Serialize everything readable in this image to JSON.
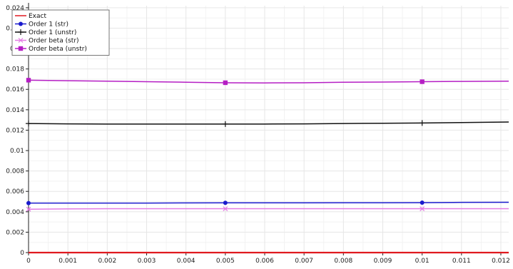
{
  "chart_data": {
    "type": "line",
    "title": "",
    "xlabel": "",
    "ylabel": "",
    "xlim": [
      0,
      0.0122
    ],
    "ylim": [
      0,
      0.0242
    ],
    "grid": true,
    "legend_position": "top-left",
    "x_ticks": [
      0,
      0.001,
      0.002,
      0.003,
      0.004,
      0.005,
      0.006,
      0.007,
      0.008,
      0.009,
      0.01,
      0.011,
      0.012
    ],
    "x_tick_labels": [
      "0",
      "0.001",
      "0.002",
      "0.003",
      "0.004",
      "0.005",
      "0.006",
      "0.007",
      "0.008",
      "0.009",
      "0.01",
      "0.011",
      "0.012"
    ],
    "y_ticks": [
      0,
      0.002,
      0.004,
      0.006,
      0.008,
      0.01,
      0.012,
      0.014,
      0.016,
      0.018,
      0.02,
      0.022,
      0.024
    ],
    "y_tick_labels": [
      "0",
      "0.002",
      "0.004",
      "0.006",
      "0.008",
      "0.01",
      "0.012",
      "0.014",
      "0.016",
      "0.018",
      "0.02",
      "0.022",
      "0.024"
    ],
    "x": [
      0,
      0.001,
      0.002,
      0.003,
      0.004,
      0.005,
      0.006,
      0.007,
      0.008,
      0.009,
      0.01,
      0.011,
      0.0122
    ],
    "series": [
      {
        "name": "Exact",
        "color": "#e0191f",
        "marker": "none",
        "values": [
          0,
          0,
          0,
          0,
          0,
          0,
          0,
          0,
          0,
          0,
          0,
          0,
          0
        ]
      },
      {
        "name": "Order 1 (str)",
        "color": "#1a1acd",
        "marker": "circle",
        "marker_x": [
          0,
          0.005,
          0.01
        ],
        "values": [
          0.00485,
          0.00485,
          0.00485,
          0.00485,
          0.00487,
          0.00488,
          0.00488,
          0.00488,
          0.00489,
          0.00489,
          0.0049,
          0.00492,
          0.00493
        ]
      },
      {
        "name": "Order 1 (unstr)",
        "color": "#111111",
        "marker": "plus",
        "marker_x": [
          0,
          0.005,
          0.01
        ],
        "values": [
          0.01265,
          0.01262,
          0.0126,
          0.0126,
          0.0126,
          0.0126,
          0.0126,
          0.01262,
          0.01265,
          0.01268,
          0.0127,
          0.01275,
          0.0128
        ]
      },
      {
        "name": "Order beta (str)",
        "color": "#e37ae3",
        "marker": "cross",
        "marker_x": [
          0,
          0.005,
          0.01
        ],
        "values": [
          0.00425,
          0.00428,
          0.0043,
          0.0043,
          0.0043,
          0.0043,
          0.0043,
          0.0043,
          0.0043,
          0.0043,
          0.0043,
          0.0043,
          0.0043
        ]
      },
      {
        "name": "Order beta (unstr)",
        "color": "#b51ec4",
        "marker": "square",
        "marker_x": [
          0,
          0.005,
          0.01
        ],
        "values": [
          0.0169,
          0.01685,
          0.0168,
          0.01675,
          0.0167,
          0.01665,
          0.01663,
          0.01665,
          0.0167,
          0.01672,
          0.01675,
          0.01678,
          0.0168
        ]
      }
    ]
  }
}
